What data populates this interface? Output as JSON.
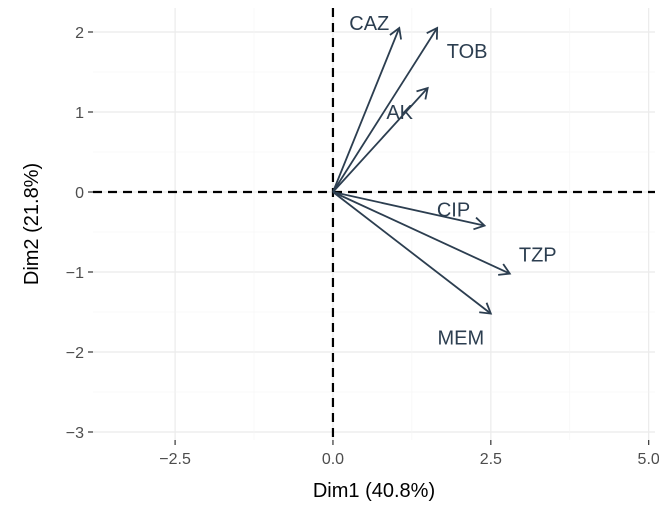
{
  "chart_data": {
    "type": "scatter",
    "subtype": "pca-variable-biplot",
    "title": "",
    "xlabel": "Dim1 (40.8%)",
    "ylabel": "Dim2 (21.8%)",
    "xlim": [
      -3.8,
      5.1
    ],
    "ylim": [
      -3.1,
      2.3
    ],
    "xticks": [
      {
        "value": -2.5,
        "label": "−2.5"
      },
      {
        "value": 0.0,
        "label": "0.0"
      },
      {
        "value": 2.5,
        "label": "2.5"
      },
      {
        "value": 5.0,
        "label": "5.0"
      }
    ],
    "yticks": [
      {
        "value": -3,
        "label": "−3"
      },
      {
        "value": -2,
        "label": "−2"
      },
      {
        "value": -1,
        "label": "−1"
      },
      {
        "value": 0,
        "label": "0"
      },
      {
        "value": 1,
        "label": "1"
      },
      {
        "value": 2,
        "label": "2"
      }
    ],
    "grid": true,
    "legend": "none",
    "reference_lines": {
      "x": 0,
      "y": 0
    },
    "color": "#2c3e50",
    "series": [
      {
        "name": "CAZ",
        "x": 1.05,
        "y": 2.05
      },
      {
        "name": "TOB",
        "x": 1.65,
        "y": 2.05
      },
      {
        "name": "AK",
        "x": 1.5,
        "y": 1.3
      },
      {
        "name": "CIP",
        "x": 2.4,
        "y": -0.42
      },
      {
        "name": "TZP",
        "x": 2.8,
        "y": -1.02
      },
      {
        "name": "MEM",
        "x": 2.5,
        "y": -1.52
      }
    ]
  }
}
